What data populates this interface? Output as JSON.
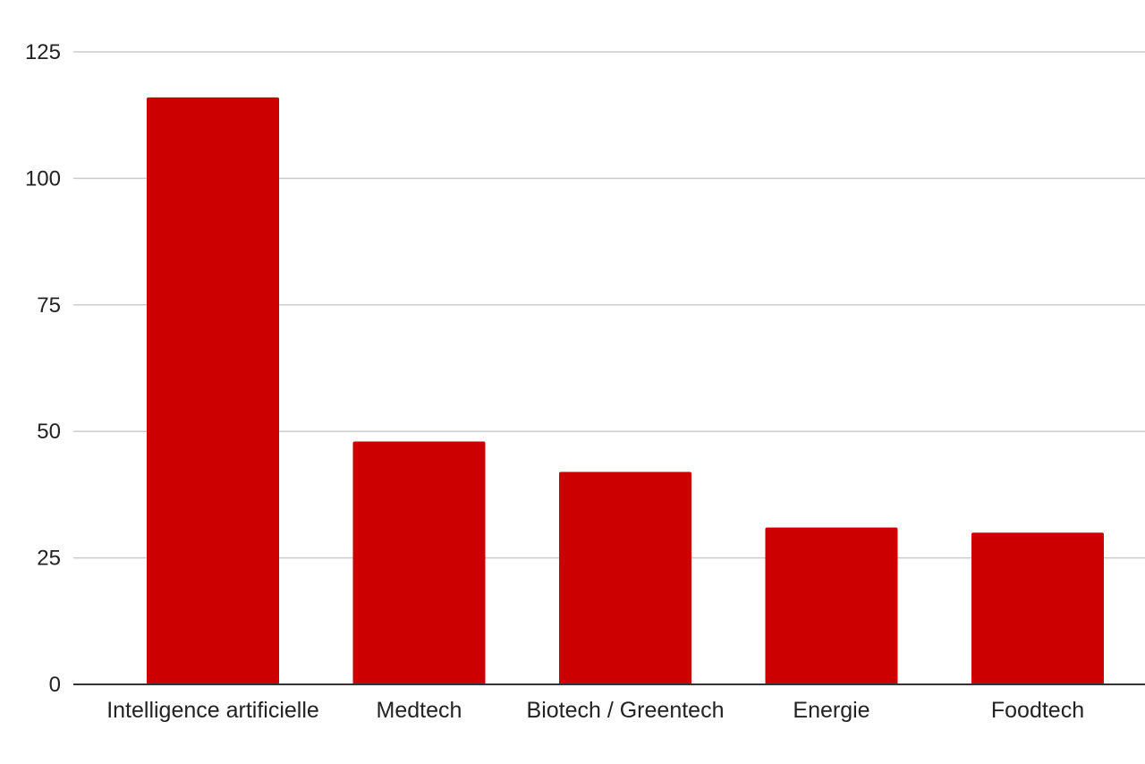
{
  "chart_data": {
    "type": "bar",
    "categories": [
      "Intelligence artificielle",
      "Medtech",
      "Biotech / Greentech",
      "Energie",
      "Foodtech"
    ],
    "values": [
      116,
      48,
      42,
      31,
      30
    ],
    "title": "",
    "xlabel": "",
    "ylabel": "",
    "ylim": [
      0,
      125
    ],
    "yticks": [
      0,
      25,
      50,
      75,
      100,
      125
    ],
    "grid": true,
    "legend": "none",
    "bar_color": "#cc0000"
  }
}
